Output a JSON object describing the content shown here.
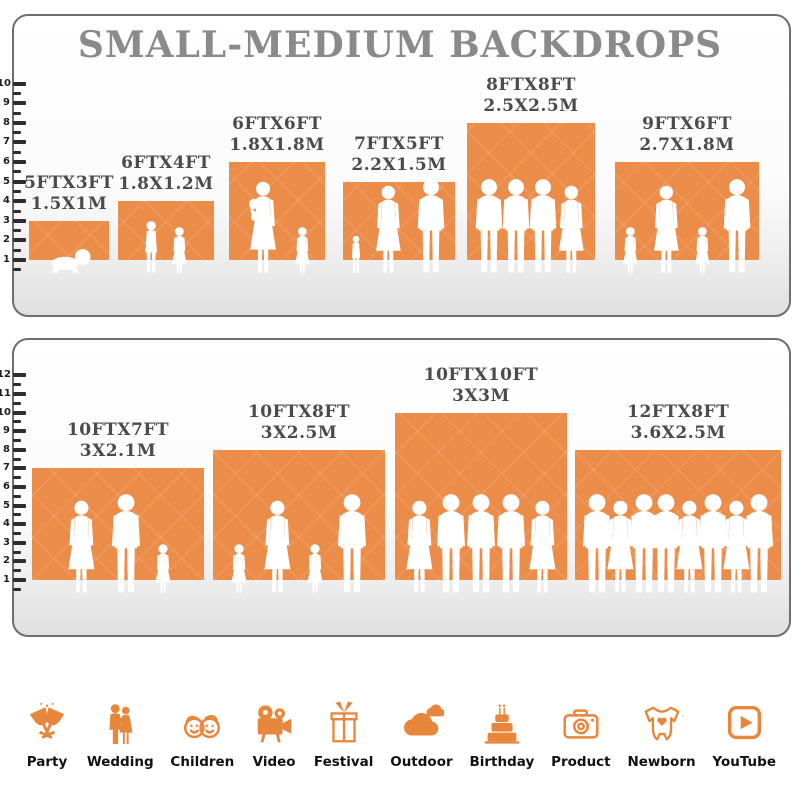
{
  "title": "SMALL-MEDIUM BACKDROPS",
  "colors": {
    "backdrop_orange": "#EC8C49",
    "icon_orange": "#E8863C",
    "title_gray": "#8A8A8A",
    "label_gray": "#4B4B4B"
  },
  "panels": [
    {
      "name": "small-medium-sizes",
      "ruler_min": 1,
      "ruler_max": 10,
      "backdrops": [
        {
          "size_ft": "5FTX3FT",
          "size_m": "1.5X1M",
          "width_ft": 5,
          "height_ft": 3,
          "people": [
            "baby"
          ]
        },
        {
          "size_ft": "6FTX4FT",
          "size_m": "1.8X1.2M",
          "width_ft": 6,
          "height_ft": 4,
          "people": [
            "boy",
            "girl"
          ]
        },
        {
          "size_ft": "6FTX6FT",
          "size_m": "1.8X1.8M",
          "width_ft": 6,
          "height_ft": 6,
          "people": [
            "woman-baby",
            "girl"
          ]
        },
        {
          "size_ft": "7FTX5FT",
          "size_m": "2.2X1.5M",
          "width_ft": 7,
          "height_ft": 5,
          "people": [
            "toddler",
            "woman",
            "man"
          ]
        },
        {
          "size_ft": "8FTX8FT",
          "size_m": "2.5X2.5M",
          "width_ft": 8,
          "height_ft": 8,
          "people": [
            "man",
            "man",
            "man",
            "woman"
          ]
        },
        {
          "size_ft": "9FTX6FT",
          "size_m": "2.7X1.8M",
          "width_ft": 9,
          "height_ft": 6,
          "people": [
            "girl",
            "woman",
            "girl",
            "man"
          ]
        }
      ]
    },
    {
      "name": "large-sizes",
      "ruler_min": 1,
      "ruler_max": 12,
      "backdrops": [
        {
          "size_ft": "10FTX7FT",
          "size_m": "3X2.1M",
          "width_ft": 10,
          "height_ft": 7,
          "people": [
            "woman",
            "man",
            "girl"
          ]
        },
        {
          "size_ft": "10FTX8FT",
          "size_m": "3X2.5M",
          "width_ft": 10,
          "height_ft": 8,
          "people": [
            "girl",
            "woman",
            "girl",
            "man"
          ]
        },
        {
          "size_ft": "10FTX10FT",
          "size_m": "3X3M",
          "width_ft": 10,
          "height_ft": 10,
          "people": [
            "woman",
            "man",
            "man",
            "man",
            "woman"
          ]
        },
        {
          "size_ft": "12FTX8FT",
          "size_m": "3.6X2.5M",
          "width_ft": 12,
          "height_ft": 8,
          "people": [
            "man",
            "woman",
            "man",
            "man",
            "woman",
            "man",
            "woman",
            "man"
          ]
        }
      ]
    }
  ],
  "categories": [
    {
      "label": "Party",
      "icon": "party-icon"
    },
    {
      "label": "Wedding",
      "icon": "wedding-icon"
    },
    {
      "label": "Children",
      "icon": "children-icon"
    },
    {
      "label": "Video",
      "icon": "video-icon"
    },
    {
      "label": "Festival",
      "icon": "festival-icon"
    },
    {
      "label": "Outdoor",
      "icon": "outdoor-icon"
    },
    {
      "label": "Birthday",
      "icon": "birthday-icon"
    },
    {
      "label": "Product",
      "icon": "product-icon"
    },
    {
      "label": "Newborn",
      "icon": "newborn-icon"
    },
    {
      "label": "YouTube",
      "icon": "youtube-icon"
    }
  ]
}
